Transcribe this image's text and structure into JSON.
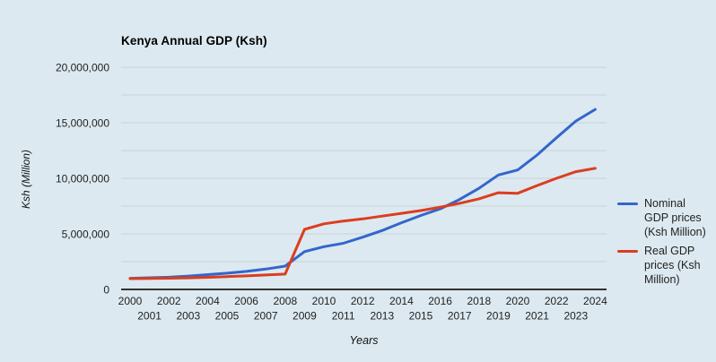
{
  "chart_data": {
    "type": "line",
    "title": "Kenya Annual GDP (Ksh)",
    "xlabel": "Years",
    "ylabel": "Ksh (Million)",
    "x": [
      2000,
      2001,
      2002,
      2003,
      2004,
      2005,
      2006,
      2007,
      2008,
      2009,
      2010,
      2011,
      2012,
      2013,
      2014,
      2015,
      2016,
      2017,
      2018,
      2019,
      2020,
      2021,
      2022,
      2023,
      2024
    ],
    "series": [
      {
        "name": "Nominal GDP prices (Ksh Million)",
        "color": "#3366cc",
        "values": [
          1000000,
          1050000,
          1100000,
          1200000,
          1330000,
          1460000,
          1620000,
          1830000,
          2100000,
          3400000,
          3850000,
          4150000,
          4700000,
          5300000,
          6000000,
          6650000,
          7250000,
          8100000,
          9100000,
          10300000,
          10750000,
          12100000,
          13650000,
          15150000,
          16200000
        ]
      },
      {
        "name": "Real GDP prices (Ksh Million)",
        "color": "#dc3d20",
        "values": [
          970000,
          990000,
          1010000,
          1040000,
          1090000,
          1150000,
          1220000,
          1300000,
          1380000,
          5400000,
          5900000,
          6150000,
          6350000,
          6600000,
          6850000,
          7100000,
          7400000,
          7750000,
          8150000,
          8700000,
          8650000,
          9350000,
          10000000,
          10600000,
          10900000
        ]
      }
    ],
    "ylim": [
      0,
      20000000
    ],
    "y_gridline_step": 2500000,
    "y_tick_labels": [
      "0",
      "5,000,000",
      "10,000,000",
      "15,000,000",
      "20,000,000"
    ],
    "y_major_tick_step": 5000000,
    "grid": true,
    "legend_position": "right"
  },
  "colors": {
    "background": "#dce9f0",
    "gridline": "#c8d1d8",
    "axis_line": "#333333",
    "tick_text": "#222222"
  }
}
